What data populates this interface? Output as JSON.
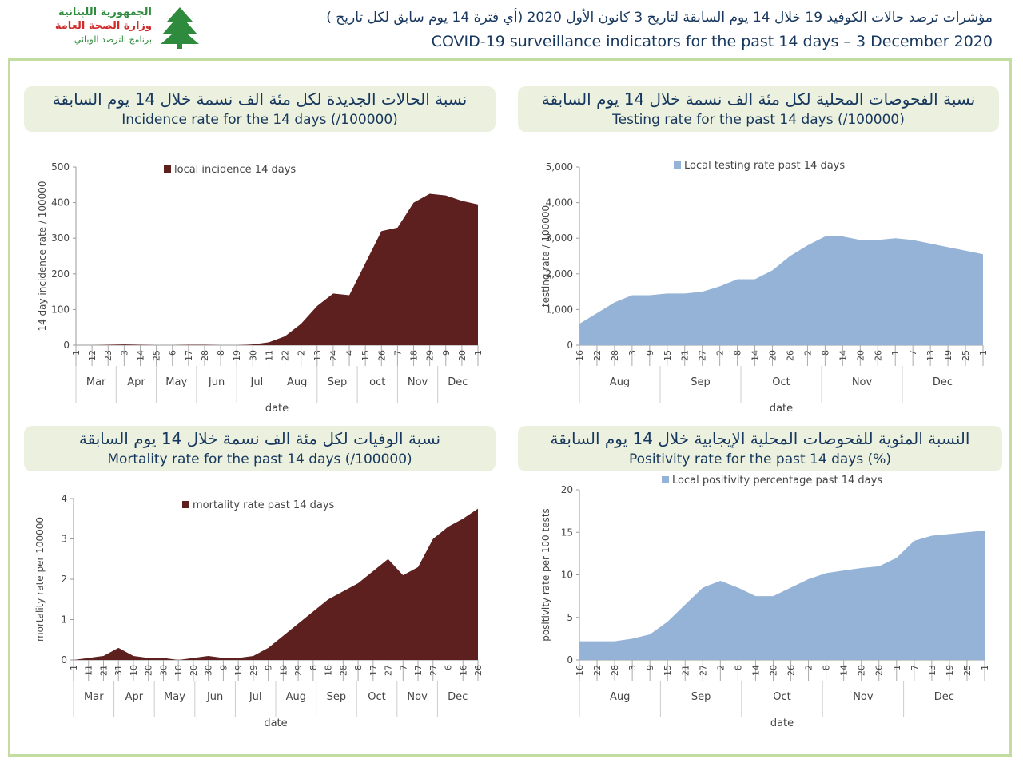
{
  "header": {
    "title_ar": "مؤشرات ترصد حالات الكوفيد 19 خلال 14 يوم السابقة لتاريخ 3 كانون الأول 2020 (أي فترة 14 يوم سابق لكل تاريخ )",
    "title_en": "COVID-19 surveillance indicators for the past 14 days – 3 December 2020"
  },
  "logo": {
    "line1": "الجمهورية اللبنانية",
    "line2": "وزارة الصحة العامة",
    "line3": "برنامج الترصد الوبائي"
  },
  "chart_data": [
    {
      "type": "area",
      "title": "نسبة الحالات الجديدة لكل مئة الف نسمة خلال 14 يوم السابقة",
      "subtitle": "Incidence rate for the 14 days  (/100000)",
      "y_label": "14 day incidence rate / 100000",
      "x_label": "date",
      "categories": [
        "1",
        "12",
        "23",
        "3",
        "14",
        "25",
        "6",
        "17",
        "28",
        "8",
        "19",
        "30",
        "11",
        "22",
        "2",
        "13",
        "24",
        "4",
        "15",
        "26",
        "7",
        "18",
        "29",
        "9",
        "20",
        "1"
      ],
      "month_labels": [
        "Mar",
        "Apr",
        "May",
        "Jun",
        "Jul",
        "Aug",
        "Sep",
        "oct",
        "Nov",
        "Dec"
      ],
      "series": [
        {
          "name": "local incidence 14 days",
          "color": "#5e1f1f",
          "values": [
            0,
            0,
            1,
            2,
            1,
            0,
            0,
            1,
            1,
            0,
            0,
            2,
            8,
            25,
            60,
            110,
            145,
            140,
            230,
            320,
            330,
            400,
            425,
            420,
            405,
            395
          ]
        }
      ],
      "ylim": [
        0,
        500
      ],
      "yticks": [
        0,
        100,
        200,
        300,
        400,
        500
      ]
    },
    {
      "type": "area",
      "title": "نسبة الفحوصات المحلية لكل مئة الف نسمة خلال 14 يوم السابقة",
      "subtitle": "Testing rate for the past 14 days (/100000)",
      "y_label": "testing rate / 100000",
      "x_label": "date",
      "categories": [
        "16",
        "22",
        "28",
        "3",
        "9",
        "15",
        "21",
        "27",
        "2",
        "8",
        "14",
        "20",
        "26",
        "2",
        "8",
        "14",
        "20",
        "26",
        "1",
        "7",
        "13",
        "19",
        "25",
        "1"
      ],
      "month_labels": [
        "Aug",
        "Sep",
        "Oct",
        "Nov",
        "Dec"
      ],
      "series": [
        {
          "name": "Local testing rate past 14 days",
          "color": "#95b3d7",
          "values": [
            600,
            900,
            1200,
            1400,
            1400,
            1450,
            1450,
            1500,
            1650,
            1850,
            1850,
            2100,
            2500,
            2800,
            3050,
            3050,
            2950,
            2950,
            3000,
            2950,
            2850,
            2750,
            2650,
            2550
          ]
        }
      ],
      "ylim": [
        0,
        5000
      ],
      "yticks": [
        0,
        {
          "value": 1000,
          "label": "1,000"
        },
        {
          "value": 2000,
          "label": "2,000"
        },
        {
          "value": 3000,
          "label": "3,000"
        },
        {
          "value": 4000,
          "label": "4,000"
        },
        {
          "value": 5000,
          "label": "5,000"
        }
      ]
    },
    {
      "type": "area",
      "title": "نسبة الوفيات لكل مئة الف نسمة خلال 14 يوم السابقة",
      "subtitle": "Mortality rate for the past 14 days (/100000)",
      "y_label": "mortality rate per 100000",
      "x_label": "date",
      "categories": [
        "1",
        "11",
        "21",
        "31",
        "10",
        "20",
        "30",
        "10",
        "20",
        "30",
        "9",
        "19",
        "29",
        "9",
        "19",
        "29",
        "8",
        "18",
        "28",
        "8",
        "17",
        "27",
        "7",
        "17",
        "27",
        "6",
        "16",
        "26"
      ],
      "month_labels": [
        "Mar",
        "Apr",
        "May",
        "Jun",
        "Jul",
        "Aug",
        "Sep",
        "Oct",
        "Nov",
        "Dec"
      ],
      "series": [
        {
          "name": "mortality rate past 14 days",
          "color": "#5e1f1f",
          "values": [
            0,
            0.05,
            0.1,
            0.3,
            0.1,
            0.05,
            0.05,
            0,
            0.05,
            0.1,
            0.05,
            0.05,
            0.1,
            0.3,
            0.6,
            0.9,
            1.2,
            1.5,
            1.7,
            1.9,
            2.2,
            2.5,
            2.1,
            2.3,
            3,
            3.3,
            3.5,
            3.75
          ]
        }
      ],
      "ylim": [
        0,
        4
      ],
      "yticks": [
        0,
        1,
        2,
        3,
        4
      ]
    },
    {
      "type": "area",
      "title": "النسبة المئوية للفحوصات المحلية الإيجابية خلال 14 يوم السابقة",
      "subtitle": "Positivity rate for the past 14 days (%)",
      "y_label": "positivity rate per 100 tests",
      "x_label": "date",
      "categories": [
        "16",
        "22",
        "28",
        "3",
        "9",
        "15",
        "21",
        "27",
        "2",
        "8",
        "14",
        "20",
        "26",
        "2",
        "8",
        "14",
        "20",
        "26",
        "1",
        "7",
        "13",
        "19",
        "25",
        "1"
      ],
      "month_labels": [
        "Aug",
        "Sep",
        "Oct",
        "Nov",
        "Dec"
      ],
      "series": [
        {
          "name": "Local positivity percentage past 14 days",
          "color": "#95b3d7",
          "values": [
            2.2,
            2.2,
            2.2,
            2.5,
            3,
            4.5,
            6.5,
            8.5,
            9.3,
            8.5,
            7.5,
            7.5,
            8.5,
            9.5,
            10.2,
            10.5,
            10.8,
            11,
            12,
            14,
            14.6,
            14.8,
            15,
            15.2
          ]
        }
      ],
      "ylim": [
        0,
        20
      ],
      "yticks": [
        0,
        5,
        10,
        15,
        20
      ]
    }
  ]
}
